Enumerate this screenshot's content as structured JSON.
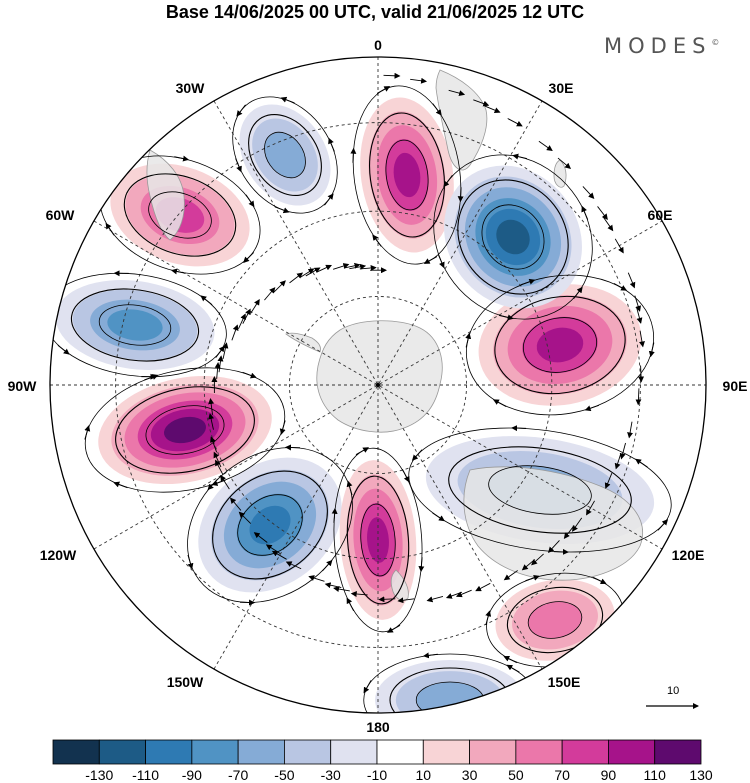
{
  "title": "Base 14/06/2025 00 UTC, valid 21/06/2025 12 UTC",
  "brand": "MODES",
  "brand_mark": "©",
  "longitude_labels": [
    "0",
    "30E",
    "60E",
    "90E",
    "120E",
    "150E",
    "180",
    "150W",
    "120W",
    "90W",
    "60W",
    "30W"
  ],
  "reference_vector_label": "10",
  "colorbar": {
    "colors": [
      "#12324f",
      "#1d5b86",
      "#2e7ab3",
      "#5093c4",
      "#85abd6",
      "#b9c6e3",
      "#e0e2f0",
      "#ffffff",
      "#f8d4d6",
      "#f2a8bd",
      "#eb77aa",
      "#d33b9b",
      "#a6138a",
      "#5e0a6e"
    ],
    "ticks": [
      "-130",
      "-110",
      "-90",
      "-70",
      "-50",
      "-30",
      "-10",
      "10",
      "30",
      "50",
      "70",
      "90",
      "110",
      "130"
    ]
  },
  "map": {
    "projection": "south polar stereographic",
    "field": "wave-number-7 anomaly with wind streamlines",
    "land_color": "#ebebeb",
    "graticule": "dashed"
  }
}
